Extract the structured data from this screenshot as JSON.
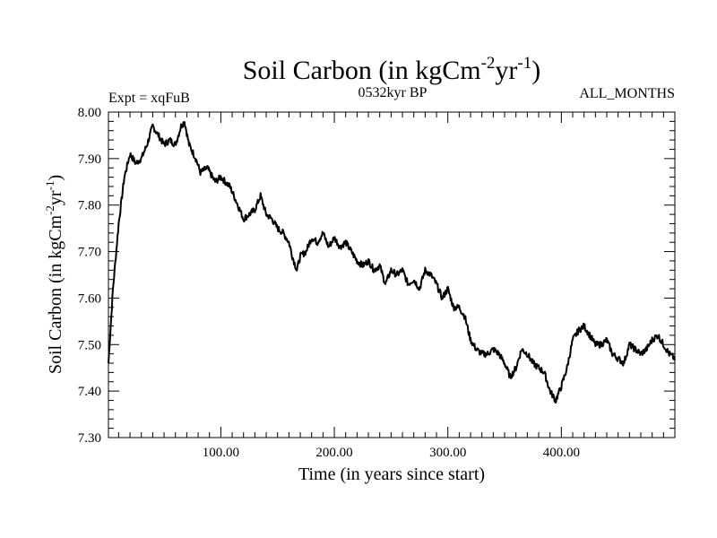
{
  "chart_data": {
    "type": "line",
    "title": {
      "main": "Soil Carbon (in kgCm",
      "exp1": "-2",
      "mid": "yr",
      "exp2": "-1",
      "end": ")"
    },
    "subtitle_left": "Expt = xqFuB",
    "subtitle_center": "0532kyr BP",
    "subtitle_right": "ALL_MONTHS",
    "xlabel": "Time (in years since start)",
    "ylabel": {
      "main": "Soil Carbon (in kgCm",
      "exp1": "-2",
      "mid": "yr",
      "exp2": "-1",
      "end": ")"
    },
    "xlim": [
      1,
      500
    ],
    "ylim": [
      7.3,
      8.0
    ],
    "xticks": [
      100,
      200,
      300,
      400
    ],
    "xtick_labels": [
      "100.00",
      "200.00",
      "300.00",
      "400.00"
    ],
    "yticks": [
      7.3,
      7.4,
      7.5,
      7.6,
      7.7,
      7.8,
      7.9,
      8.0
    ],
    "ytick_labels": [
      "7.30",
      "7.40",
      "7.50",
      "7.60",
      "7.70",
      "7.80",
      "7.90",
      "8.00"
    ],
    "line_color": "#000000",
    "series": [
      {
        "name": "soil_carbon",
        "x": [
          1,
          5,
          10,
          15,
          20,
          25,
          30,
          35,
          40,
          45,
          50,
          55,
          60,
          65,
          68,
          72,
          78,
          82,
          88,
          95,
          100,
          108,
          115,
          120,
          125,
          130,
          135,
          140,
          145,
          150,
          155,
          160,
          163,
          167,
          170,
          175,
          180,
          185,
          190,
          195,
          200,
          205,
          210,
          215,
          220,
          225,
          230,
          235,
          240,
          245,
          250,
          255,
          260,
          265,
          270,
          275,
          280,
          285,
          290,
          295,
          300,
          305,
          310,
          315,
          320,
          325,
          330,
          335,
          340,
          345,
          350,
          355,
          360,
          365,
          370,
          375,
          380,
          385,
          390,
          395,
          400,
          405,
          410,
          415,
          420,
          425,
          430,
          435,
          440,
          445,
          450,
          455,
          460,
          465,
          470,
          475,
          480,
          485,
          490,
          495,
          500
        ],
        "values": [
          7.46,
          7.62,
          7.76,
          7.86,
          7.91,
          7.89,
          7.9,
          7.93,
          7.97,
          7.95,
          7.93,
          7.94,
          7.93,
          7.97,
          7.98,
          7.93,
          7.9,
          7.87,
          7.88,
          7.85,
          7.86,
          7.84,
          7.8,
          7.77,
          7.78,
          7.79,
          7.82,
          7.78,
          7.77,
          7.75,
          7.74,
          7.72,
          7.69,
          7.66,
          7.69,
          7.7,
          7.73,
          7.72,
          7.74,
          7.71,
          7.73,
          7.71,
          7.72,
          7.7,
          7.68,
          7.67,
          7.68,
          7.66,
          7.67,
          7.63,
          7.66,
          7.65,
          7.66,
          7.63,
          7.64,
          7.62,
          7.66,
          7.65,
          7.63,
          7.6,
          7.62,
          7.58,
          7.58,
          7.56,
          7.51,
          7.49,
          7.48,
          7.48,
          7.49,
          7.48,
          7.46,
          7.43,
          7.45,
          7.49,
          7.48,
          7.46,
          7.45,
          7.44,
          7.4,
          7.38,
          7.41,
          7.45,
          7.51,
          7.53,
          7.54,
          7.52,
          7.5,
          7.5,
          7.51,
          7.48,
          7.47,
          7.46,
          7.5,
          7.49,
          7.48,
          7.49,
          7.51,
          7.52,
          7.5,
          7.48,
          7.47
        ]
      }
    ]
  }
}
